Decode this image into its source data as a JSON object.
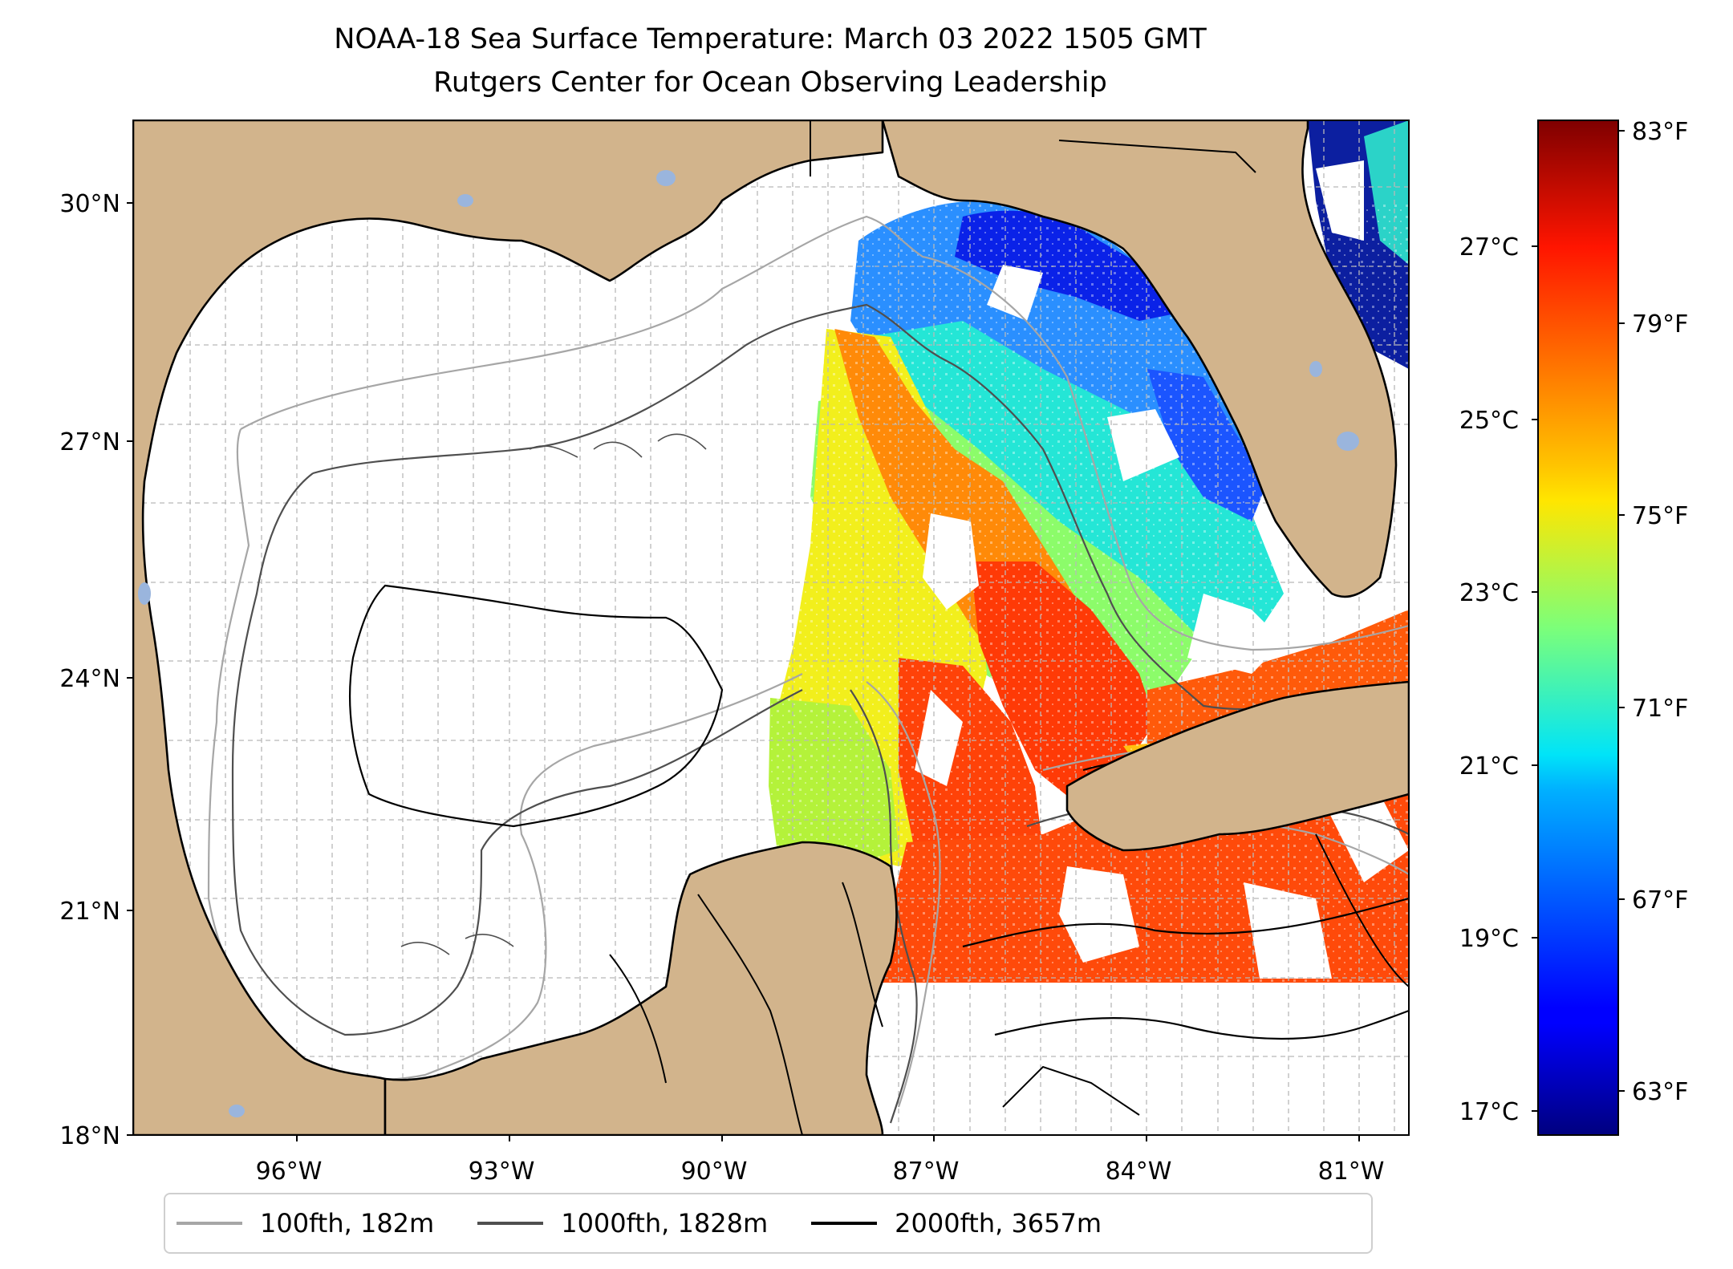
{
  "title": "NOAA-18 Sea Surface Temperature: March 03 2022 1505 GMT",
  "subtitle": "Rutgers Center for Ocean Observing Leadership",
  "map": {
    "lat_range": [
      18,
      31.1
    ],
    "lon_range": [
      -98.3,
      -80.3
    ],
    "lat_ticks": [
      {
        "value": 30,
        "label": "30°N"
      },
      {
        "value": 27,
        "label": "27°N"
      },
      {
        "value": 24,
        "label": "24°N"
      },
      {
        "value": 21,
        "label": "21°N"
      },
      {
        "value": 18,
        "label": "18°N"
      }
    ],
    "lon_ticks": [
      {
        "value": -96,
        "label": "96°W"
      },
      {
        "value": -93,
        "label": "93°W"
      },
      {
        "value": -90,
        "label": "90°W"
      },
      {
        "value": -87,
        "label": "87°W"
      },
      {
        "value": -84,
        "label": "84°W"
      },
      {
        "value": -81,
        "label": "81°W"
      }
    ],
    "grid": true,
    "colors": {
      "land": "#d2b48c",
      "ocean": "#ffffff",
      "lakes": "#9ab5dd",
      "grid": "#b8b8b8",
      "coast": "#000000"
    }
  },
  "colorbar": {
    "colormap": "jet",
    "range_c": [
      16.8,
      28.4
    ],
    "celsius_ticks": [
      {
        "value": 27,
        "label": "27°C"
      },
      {
        "value": 25,
        "label": "25°C"
      },
      {
        "value": 23,
        "label": "23°C"
      },
      {
        "value": 21,
        "label": "21°C"
      },
      {
        "value": 19,
        "label": "19°C"
      },
      {
        "value": 17,
        "label": "17°C"
      }
    ],
    "fahrenheit_ticks": [
      {
        "value": 83,
        "label": "83°F"
      },
      {
        "value": 79,
        "label": "79°F"
      },
      {
        "value": 75,
        "label": "75°F"
      },
      {
        "value": 71,
        "label": "71°F"
      },
      {
        "value": 67,
        "label": "67°F"
      },
      {
        "value": 63,
        "label": "63°F"
      }
    ]
  },
  "legend": {
    "items": [
      {
        "label": "100fth, 182m",
        "color": "#a6a6a6"
      },
      {
        "label": "1000fth, 1828m",
        "color": "#4f4f4f"
      },
      {
        "label": "2000fth, 3657m",
        "color": "#000000"
      }
    ]
  }
}
